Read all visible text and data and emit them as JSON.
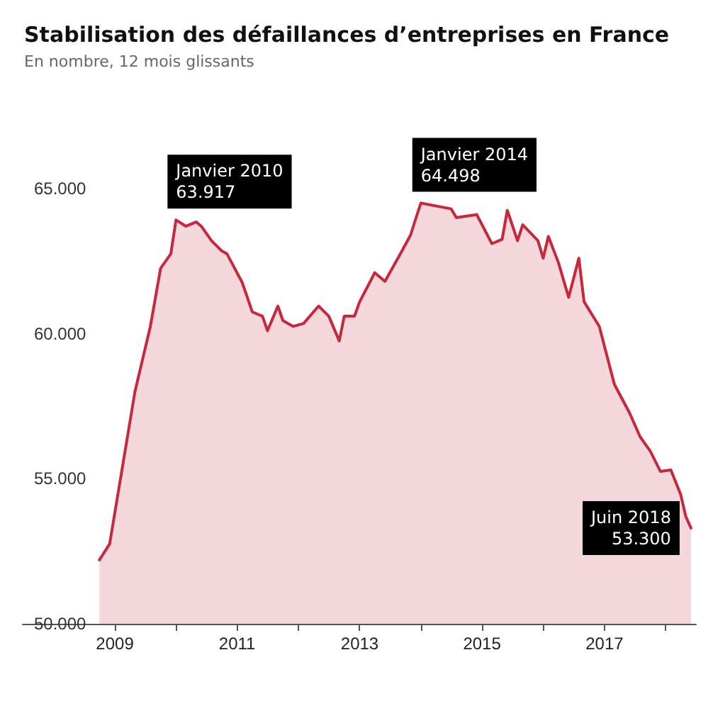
{
  "chart_data": {
    "type": "area",
    "title": "Stabilisation des défaillances d’entreprises en France",
    "subtitle": "En nombre, 12 mois glissants",
    "x": [
      "2008-10",
      "2008-12",
      "2009-05",
      "2009-08",
      "2009-10",
      "2009-12",
      "2010-01",
      "2010-03",
      "2010-05",
      "2010-06",
      "2010-08",
      "2010-10",
      "2010-11",
      "2011-02",
      "2011-04",
      "2011-06",
      "2011-07",
      "2011-09",
      "2011-10",
      "2011-12",
      "2012-02",
      "2012-05",
      "2012-07",
      "2012-09",
      "2012-10",
      "2012-12",
      "2013-01",
      "2013-03",
      "2013-04",
      "2013-06",
      "2013-09",
      "2013-11",
      "2013-12",
      "2014-01",
      "2014-07",
      "2014-08",
      "2014-12",
      "2015-03",
      "2015-05",
      "2015-06",
      "2015-08",
      "2015-09",
      "2015-12",
      "2016-01",
      "2016-02",
      "2016-04",
      "2016-06",
      "2016-08",
      "2016-09",
      "2016-12",
      "2017-03",
      "2017-06",
      "2017-08",
      "2017-10",
      "2017-12",
      "2018-02",
      "2018-04",
      "2018-05",
      "2018-06"
    ],
    "series": [
      {
        "color": "#c8283c",
        "values": [
          52200,
          52750,
          58000,
          60250,
          62250,
          62750,
          63917,
          63700,
          63850,
          63700,
          63200,
          62850,
          62750,
          61750,
          60750,
          60600,
          60100,
          60950,
          60450,
          60250,
          60350,
          60950,
          60600,
          59750,
          60600,
          60600,
          61100,
          61750,
          62100,
          61800,
          62750,
          63400,
          63950,
          64498,
          64300,
          64000,
          64100,
          63100,
          63250,
          64250,
          63200,
          63750,
          63200,
          62600,
          63350,
          62450,
          61250,
          62600,
          61100,
          60250,
          58250,
          57250,
          56450,
          55950,
          55250,
          55300,
          54450,
          53700,
          53300
        ]
      }
    ],
    "xlim": [
      "2007-07",
      "2018-07"
    ],
    "xticks": [
      "2009",
      {
        "value": "2010",
        "label": null
      },
      "2011",
      {
        "value": "2012",
        "label": null
      },
      "2013",
      {
        "value": "2014",
        "label": null
      },
      "2015",
      {
        "value": "2016",
        "label": null
      },
      "2017",
      {
        "value": "2018",
        "label": null
      }
    ],
    "ylim": [
      50000,
      65000
    ],
    "yticks": [
      {
        "value": 50000,
        "label": "50.000"
      },
      {
        "value": 55000,
        "label": "55.000"
      },
      {
        "value": 60000,
        "label": "60.000"
      },
      {
        "value": 65000,
        "label": "65.000"
      }
    ],
    "grid": false,
    "marker": "none",
    "annotations": [
      {
        "text": "Janvier 2010\n63.917",
        "x": "2010-01",
        "y": 63917
      },
      {
        "text": "Janvier 2014\n64.498",
        "x": "2014-01",
        "y": 64498
      },
      {
        "text": "Juin 2018\n53.300",
        "x": "2018-06",
        "y": 53300
      }
    ]
  }
}
